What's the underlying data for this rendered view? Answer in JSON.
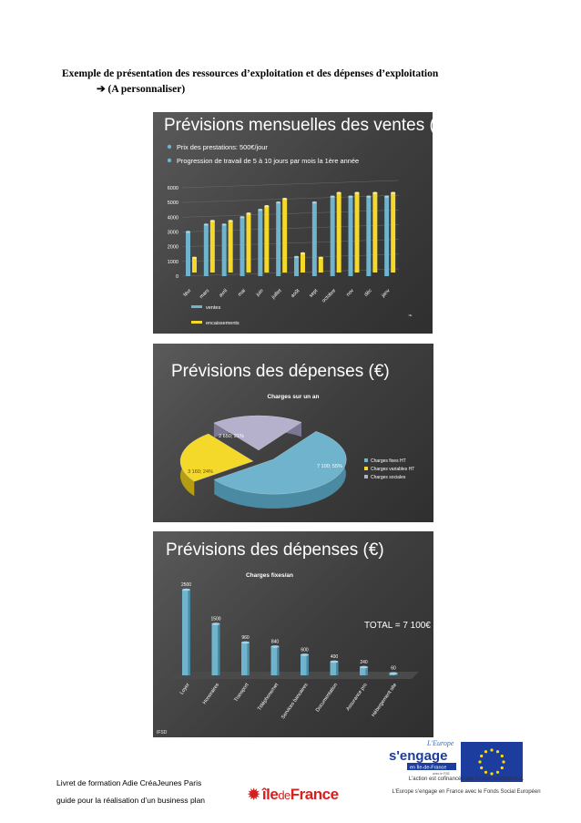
{
  "heading": {
    "line1": "Exemple de présentation des ressources d’exploitation et des dépenses d’exploitation",
    "arrow": "➔",
    "line2": "(A personnaliser)"
  },
  "slide1": {
    "title": "Prévisions mensuelles des ventes (€)",
    "bullets": [
      "Prix des prestations: 500€/jour",
      "Progression de travail de 5 à 10 jours par mois la 1ère année"
    ],
    "footer_mark": "❧"
  },
  "slide2": {
    "title": "Prévisions des dépenses (€)",
    "chart_title": "Charges sur un an",
    "slice_labels": [
      "7 100; 55%",
      "3 160; 24%",
      "2 650; 21%"
    ]
  },
  "slide3": {
    "title": "Prévisions des dépenses (€)",
    "chart_title": "Charges fixes/an",
    "total": "TOTAL = 7 100€",
    "footer_mark": "IFSD"
  },
  "chart_data": [
    {
      "type": "bar",
      "categories": [
        "févr",
        "mars",
        "avril",
        "mai",
        "juin",
        "juillet",
        "août",
        "sept",
        "octobre",
        "nov",
        "déc",
        "janv"
      ],
      "series": [
        {
          "name": "ventes",
          "values": [
            3000,
            3500,
            3500,
            4000,
            4500,
            5000,
            1300,
            5000,
            5400,
            5400,
            5400,
            5400
          ]
        },
        {
          "name": "encaissements",
          "values": [
            1000,
            3500,
            3500,
            4000,
            4500,
            5000,
            1300,
            1000,
            5400,
            5400,
            5400,
            5400
          ]
        }
      ],
      "yticks": [
        0,
        1000,
        2000,
        3000,
        4000,
        5000,
        6000
      ],
      "ylim": [
        0,
        6000
      ],
      "colors": {
        "ventes": "#6fb3cc",
        "encaissements": "#f5d92a"
      }
    },
    {
      "type": "pie",
      "categories": [
        "Charges fixes HT",
        "Charges variables HT",
        "Charges sociales"
      ],
      "values": [
        7100,
        3160,
        2650
      ],
      "colors": [
        "#6fb3cc",
        "#f5d92a",
        "#b5b0cc"
      ],
      "legend": "right"
    },
    {
      "type": "bar",
      "categories": [
        "Loyer",
        "Honoraires",
        "Transport",
        "Téléphone/net",
        "Services bancaires",
        "Documentation",
        "Assurance pro",
        "Hébergement site"
      ],
      "values": [
        2500,
        1500,
        960,
        840,
        600,
        400,
        240,
        60
      ],
      "colors": {
        "bars": "#6fb3cc"
      }
    }
  ],
  "footer": {
    "left_line1": "Livret de formation Adie CréaJeunes Paris",
    "left_line2": "guide pour la réalisation d’un business plan",
    "region_logo_name": "île",
    "region_logo_de": "de",
    "region_logo_france": "France",
    "right_line1": "L'action est cofinancée par l'Union européenne.",
    "right_line2": "L’Europe s’engage en France avec le Fonds Social Européen",
    "eu_logo_line1": "L'Europe",
    "eu_logo_line2": "s'engage",
    "eu_logo_line3": "en Île-de-France",
    "eu_logo_line4": "avec le FSE"
  }
}
